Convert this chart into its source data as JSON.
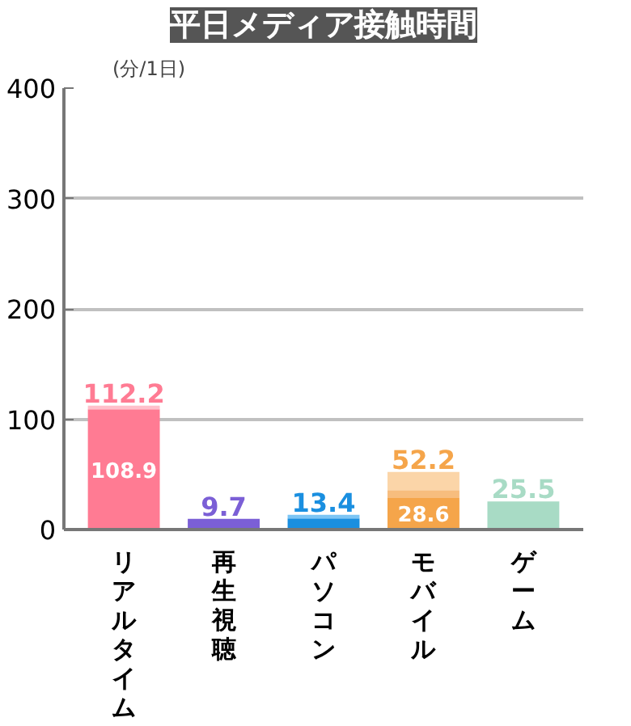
{
  "chart_data": {
    "type": "bar",
    "title": "平日メディア接触時間",
    "ylabel": "(分/1日)",
    "categories": [
      "リアルタイム",
      "再生視聴",
      "パソコン",
      "モバイル",
      "ゲーム"
    ],
    "stacked": true,
    "series": [
      {
        "colors": [
          "#ff7b93",
          "#7b5fd6",
          "#1a8fe0",
          "#f5a54a",
          "#a8dbc5"
        ],
        "values": [
          108.9,
          9.7,
          10.1,
          28.6,
          25.5
        ],
        "value_labels": [
          "108.9",
          null,
          null,
          "28.6",
          null
        ]
      },
      {
        "colors": [
          "#ff7b93",
          "#7b5fd6",
          "#1a8fe0",
          "#f7bd7e",
          "#a8dbc5"
        ],
        "values": [
          null,
          null,
          null,
          7.2,
          null
        ]
      },
      {
        "colors": [
          "#ffc0cb",
          "#7b5fd6",
          "#7cc5f5",
          "#fbd5a8",
          "#a8dbc5"
        ],
        "values": [
          3.3,
          null,
          3.3,
          16.4,
          null
        ]
      }
    ],
    "totals": [
      "112.2",
      "9.7",
      "13.4",
      "52.2",
      "25.5"
    ],
    "ylim": [
      0,
      400
    ],
    "yticks": [
      0,
      100,
      200,
      300,
      400
    ],
    "grid": "y"
  }
}
